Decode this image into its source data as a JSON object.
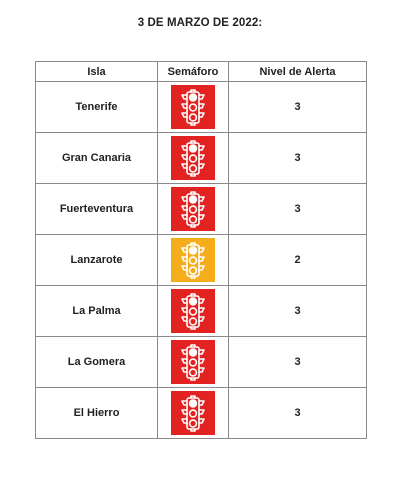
{
  "title": "3 DE MARZO DE 2022:",
  "table": {
    "headers": [
      "Isla",
      "Semáforo",
      "Nivel de Alerta"
    ],
    "rows": [
      {
        "isla": "Tenerife",
        "semaforo": "traffic-light-red-icon",
        "color": "#e32222",
        "nivel": "3"
      },
      {
        "isla": "Gran Canaria",
        "semaforo": "traffic-light-red-icon",
        "color": "#e32222",
        "nivel": "3"
      },
      {
        "isla": "Fuerteventura",
        "semaforo": "traffic-light-red-icon",
        "color": "#e32222",
        "nivel": "3"
      },
      {
        "isla": "Lanzarote",
        "semaforo": "traffic-light-orange-icon",
        "color": "#f5ad1b",
        "nivel": "2"
      },
      {
        "isla": "La Palma",
        "semaforo": "traffic-light-red-icon",
        "color": "#e32222",
        "nivel": "3"
      },
      {
        "isla": "La Gomera",
        "semaforo": "traffic-light-red-icon",
        "color": "#e32222",
        "nivel": "3"
      },
      {
        "isla": "El Hierro",
        "semaforo": "traffic-light-red-icon",
        "color": "#e32222",
        "nivel": "3"
      }
    ]
  }
}
